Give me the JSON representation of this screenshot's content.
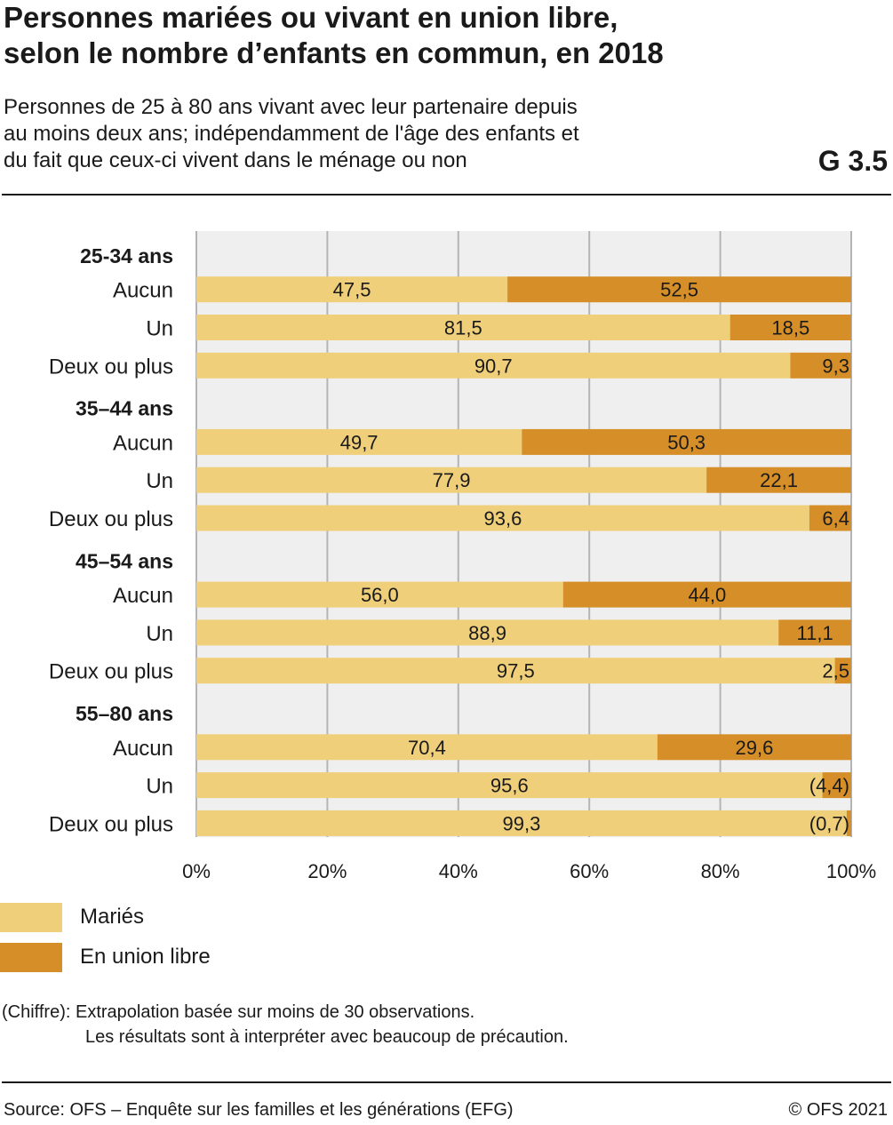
{
  "header": {
    "title_line1": "Personnes mariées ou vivant en union libre,",
    "title_line2": "selon le nombre d’enfants en commun, en 2018",
    "subtitle_line1": "Personnes de 25 à 80 ans vivant avec leur partenaire depuis",
    "subtitle_line2": "au moins deux ans; indépendamment de l'âge des enfants et",
    "subtitle_line3": "du fait que ceux-ci vivent dans le ménage ou non",
    "graphic_number": "G 3.5"
  },
  "chart_data": {
    "type": "bar",
    "orientation": "horizontal",
    "stacked": true,
    "x_ticks": [
      "0%",
      "20%",
      "40%",
      "60%",
      "80%",
      "100%"
    ],
    "xlim": [
      0,
      100
    ],
    "grid": true,
    "legend_position": "bottom-left",
    "groups": [
      {
        "label": "25-34 ans",
        "rows": [
          {
            "label": "Aucun",
            "values": [
              47.5,
              52.5
            ],
            "value_labels": [
              "47,5",
              "52,5"
            ]
          },
          {
            "label": "Un",
            "values": [
              81.5,
              18.5
            ],
            "value_labels": [
              "81,5",
              "18,5"
            ]
          },
          {
            "label": "Deux ou plus",
            "values": [
              90.7,
              9.3
            ],
            "value_labels": [
              "90,7",
              "9,3"
            ]
          }
        ]
      },
      {
        "label": "35–44 ans",
        "rows": [
          {
            "label": "Aucun",
            "values": [
              49.7,
              50.3
            ],
            "value_labels": [
              "49,7",
              "50,3"
            ]
          },
          {
            "label": "Un",
            "values": [
              77.9,
              22.1
            ],
            "value_labels": [
              "77,9",
              "22,1"
            ]
          },
          {
            "label": "Deux ou plus",
            "values": [
              93.6,
              6.4
            ],
            "value_labels": [
              "93,6",
              "6,4"
            ]
          }
        ]
      },
      {
        "label": "45–54 ans",
        "rows": [
          {
            "label": "Aucun",
            "values": [
              56.0,
              44.0
            ],
            "value_labels": [
              "56,0",
              "44,0"
            ]
          },
          {
            "label": "Un",
            "values": [
              88.9,
              11.1
            ],
            "value_labels": [
              "88,9",
              "11,1"
            ]
          },
          {
            "label": "Deux ou plus",
            "values": [
              97.5,
              2.5
            ],
            "value_labels": [
              "97,5",
              "2,5"
            ]
          }
        ]
      },
      {
        "label": "55–80 ans",
        "rows": [
          {
            "label": "Aucun",
            "values": [
              70.4,
              29.6
            ],
            "value_labels": [
              "70,4",
              "29,6"
            ]
          },
          {
            "label": "Un",
            "values": [
              95.6,
              4.4
            ],
            "value_labels": [
              "95,6",
              "(4,4)"
            ]
          },
          {
            "label": "Deux ou plus",
            "values": [
              99.3,
              0.7
            ],
            "value_labels": [
              "99,3",
              "(0,7)"
            ]
          }
        ]
      }
    ],
    "series": [
      {
        "name": "Mariés",
        "color": "#f0cf7b"
      },
      {
        "name": "En union libre",
        "color": "#d68f28"
      }
    ]
  },
  "footnote": {
    "line1": "(Chiffre): Extrapolation basée sur moins de 30 observations.",
    "line2": "Les résultats sont à interpréter avec beaucoup de précaution."
  },
  "footer": {
    "source": "Source: OFS – Enquête sur les familles et les générations (EFG)",
    "copyright": "© OFS 2021"
  },
  "colors": {
    "plot_background": "#efefef",
    "gridline": "#b4b4b4",
    "text": "#1a1a1a"
  }
}
